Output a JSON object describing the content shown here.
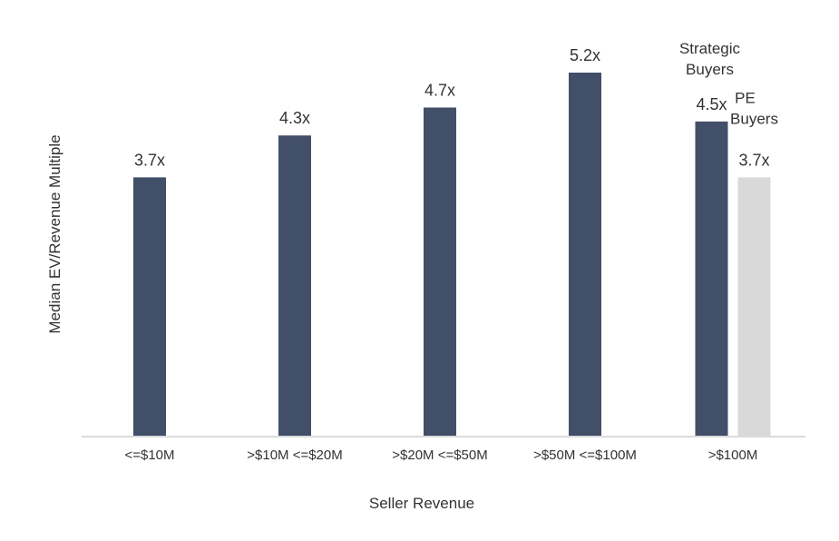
{
  "chart_data": {
    "type": "bar",
    "title": "",
    "xlabel": "Seller Revenue",
    "ylabel": "Median EV/Revenue Multiple",
    "ylim": [
      0,
      5.2
    ],
    "grid": false,
    "categories": [
      "<=$10M",
      ">$10M <=$20M",
      ">$20M <=$50M",
      ">$50M <=$100M",
      ">$100M"
    ],
    "series": [
      {
        "name": "Strategic Buyers",
        "color": "#424f69",
        "values": [
          3.7,
          4.3,
          4.7,
          5.2,
          4.5
        ]
      },
      {
        "name": "PE Buyers",
        "color": "#d9d9d9",
        "values": [
          null,
          null,
          null,
          null,
          3.7
        ]
      }
    ],
    "data_labels": [
      [
        "3.7x",
        "4.3x",
        "4.7x",
        "5.2x",
        "4.5x"
      ],
      [
        null,
        null,
        null,
        null,
        "3.7x"
      ]
    ],
    "annotations": [
      {
        "text_lines": [
          "Strategic",
          "Buyers"
        ],
        "category": ">$100M",
        "series": "Strategic Buyers"
      },
      {
        "text_lines": [
          "PE",
          "Buyers"
        ],
        "category": ">$100M",
        "series": "PE Buyers"
      }
    ]
  }
}
